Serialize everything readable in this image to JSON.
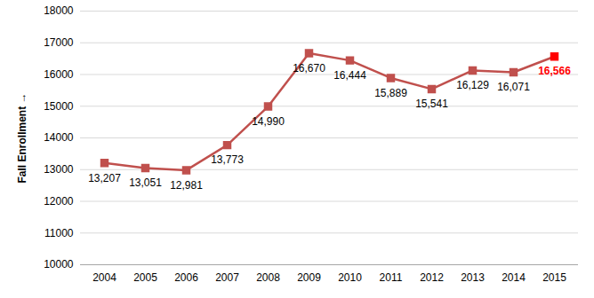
{
  "chart_data": {
    "type": "line",
    "y_label": "Fall Enrollment",
    "categories": [
      "2004",
      "2005",
      "2006",
      "2007",
      "2008",
      "2009",
      "2010",
      "2011",
      "2012",
      "2013",
      "2014",
      "2015"
    ],
    "values": [
      13207,
      13051,
      12981,
      13773,
      14990,
      16670,
      16444,
      15889,
      15541,
      16129,
      16071,
      16566
    ],
    "value_labels": [
      "13,207",
      "13,051",
      "12,981",
      "13,773",
      "14,990",
      "16,670",
      "16,444",
      "15,889",
      "15,541",
      "16,129",
      "16,071",
      "16,566"
    ],
    "color": "#c0504d",
    "colors": [
      "#c0504d",
      "#c0504d",
      "#c0504d",
      "#c0504d",
      "#c0504d",
      "#c0504d",
      "#c0504d",
      "#c0504d",
      "#c0504d",
      "#c0504d",
      "#c0504d",
      "#ff0000"
    ],
    "marker": "square",
    "data_labels": true,
    "ylim": [
      10000,
      18000
    ],
    "yticks": [
      10000,
      11000,
      12000,
      13000,
      14000,
      15000,
      16000,
      17000,
      18000
    ],
    "grid": true
  }
}
